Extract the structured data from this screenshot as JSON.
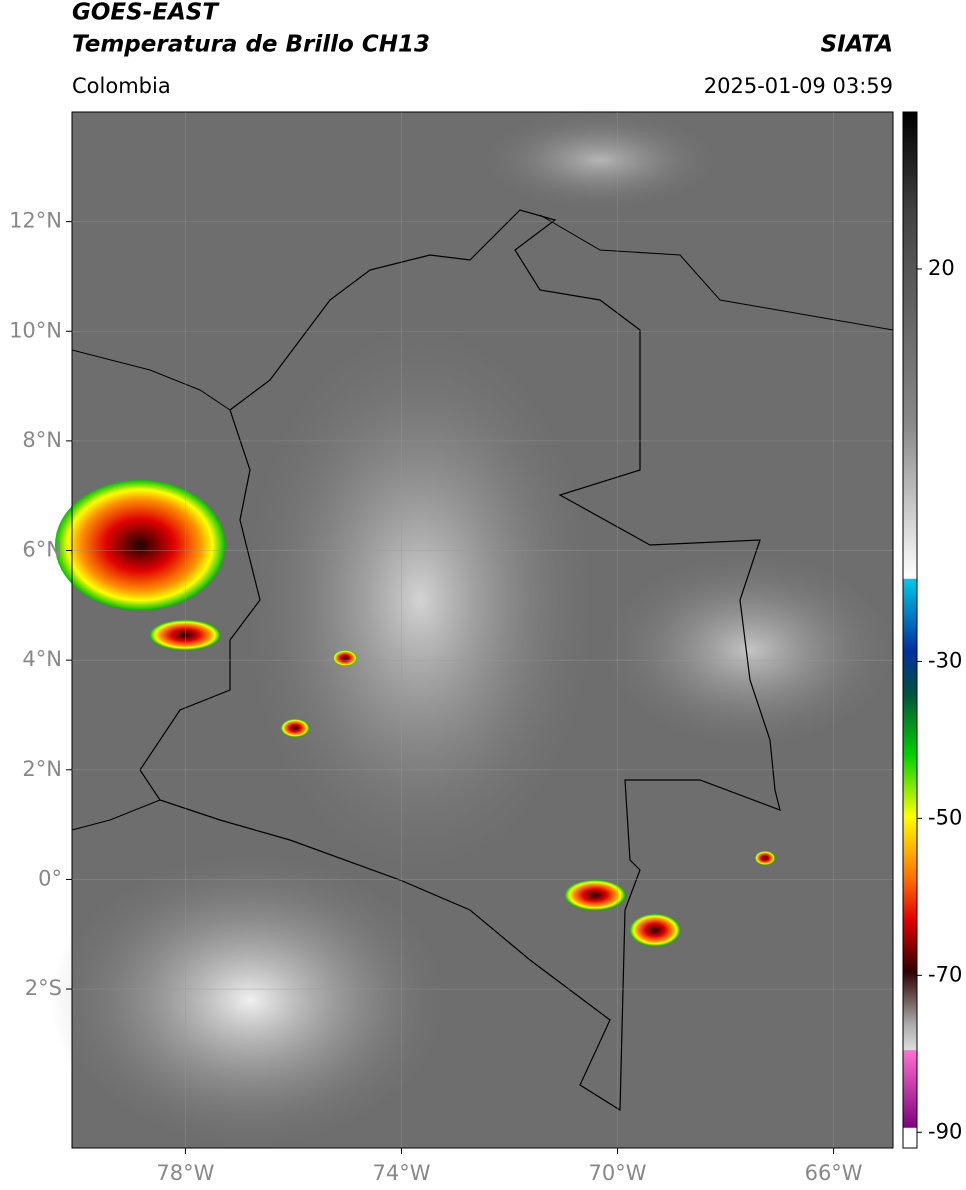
{
  "header": {
    "title": "GOES-EAST",
    "subtitle": "Temperatura de Brillo CH13",
    "source": "SIATA",
    "region": "Colombia",
    "timestamp": "2025-01-09 03:59"
  },
  "map": {
    "lonlim": [
      -80.1,
      -64.9
    ],
    "latlim": [
      -4.9,
      14
    ],
    "grid": true,
    "lonticks": [
      {
        "value": -78,
        "label": "78°W"
      },
      {
        "value": -74,
        "label": "74°W"
      },
      {
        "value": -70,
        "label": "70°W"
      },
      {
        "value": -66,
        "label": "66°W"
      }
    ],
    "latticks": [
      {
        "value": 12,
        "label": "12°N"
      },
      {
        "value": 10,
        "label": "10°N"
      },
      {
        "value": 8,
        "label": "8°N"
      },
      {
        "value": 6,
        "label": "6°N"
      },
      {
        "value": 4,
        "label": "4°N"
      },
      {
        "value": 2,
        "label": "2°N"
      },
      {
        "value": 0,
        "label": "0°"
      },
      {
        "value": -2,
        "label": "2°S"
      }
    ]
  },
  "colorbar": {
    "lim": [
      40,
      -92
    ],
    "ticks": [
      20,
      -30,
      -50,
      -70,
      -90
    ]
  }
}
